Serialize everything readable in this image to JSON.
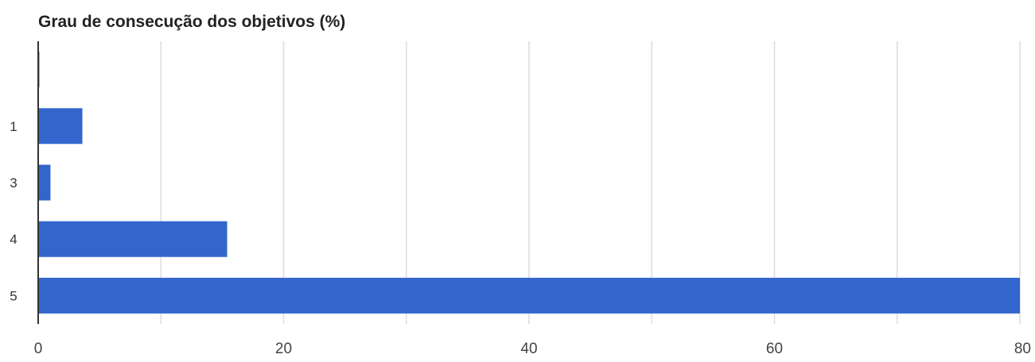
{
  "chart_data": {
    "type": "bar",
    "orientation": "horizontal",
    "title": "Grau de consecução dos objetivos (%)",
    "xlabel": "",
    "ylabel": "",
    "categories": [
      "",
      "1",
      "3",
      "4",
      "5"
    ],
    "values": [
      0.1,
      3.6,
      1.0,
      15.4,
      80
    ],
    "xlim": [
      0,
      80
    ],
    "xticks": [
      0,
      20,
      40,
      60,
      80
    ],
    "grid": true,
    "legend": "none",
    "bar_color": "#3366cc",
    "grid_color": "#dcdcdc",
    "axis_color": "#333333"
  }
}
